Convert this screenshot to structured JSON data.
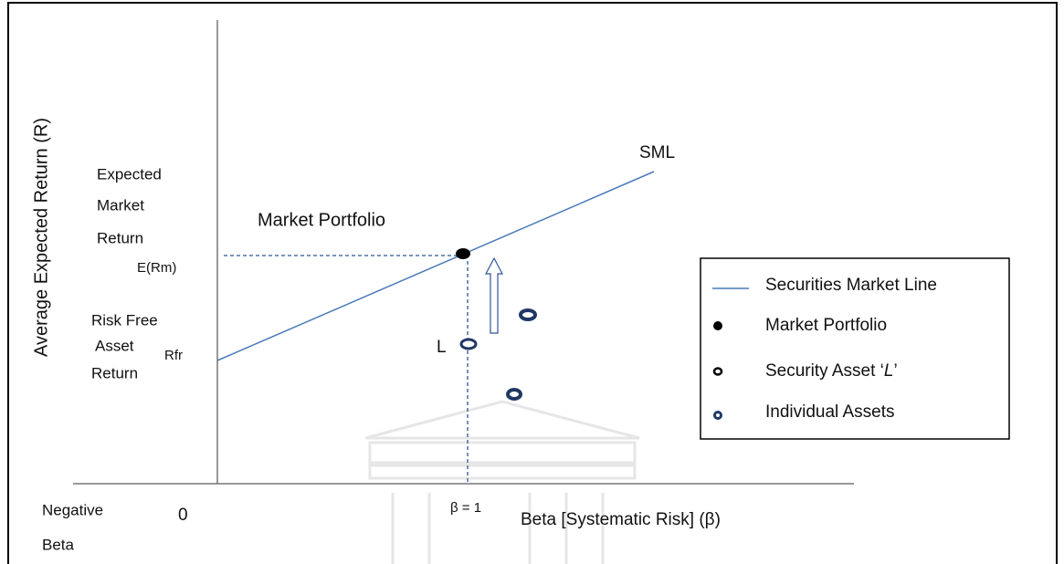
{
  "y_axis_label": "Average Expected Return (R)",
  "x_axis_label": "Beta [Systematic Risk] (β)",
  "left_labels": {
    "expected": "Expected",
    "market": "Market",
    "return": "Return",
    "erm": "E(Rm)",
    "risk_free": "Risk Free",
    "asset": "Asset",
    "return2": "Return",
    "rfr": "Rfr"
  },
  "bottom_labels": {
    "negative": "Negative",
    "beta": "Beta",
    "zero": "0",
    "beta_one": "β = 1"
  },
  "annotations": {
    "market_portfolio": "Market Portfolio",
    "sml": "SML",
    "l": "L"
  },
  "legend": {
    "sml": "Securities Market Line",
    "market": "Market Portfolio",
    "security_prefix": "Security Asset ‘",
    "security_em": "L",
    "security_suffix": "’",
    "individual": "Individual Assets"
  }
}
